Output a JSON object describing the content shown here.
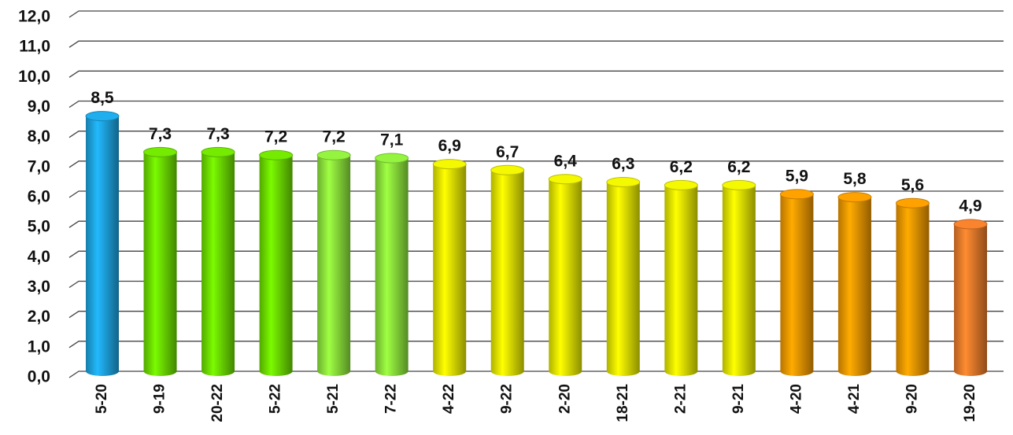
{
  "chart_data": {
    "type": "bar",
    "categories": [
      "5-20",
      "9-19",
      "20-22",
      "5-22",
      "5-21",
      "7-22",
      "4-22",
      "9-22",
      "2-20",
      "18-21",
      "2-21",
      "9-21",
      "4-20",
      "4-21",
      "9-20",
      "19-20"
    ],
    "values": [
      8.5,
      7.3,
      7.3,
      7.2,
      7.2,
      7.1,
      6.9,
      6.7,
      6.4,
      6.3,
      6.2,
      6.2,
      5.9,
      5.8,
      5.6,
      4.9
    ],
    "value_labels": [
      "8,5",
      "7,3",
      "7,3",
      "7,2",
      "7,2",
      "7,1",
      "6,9",
      "6,7",
      "6,4",
      "6,3",
      "6,2",
      "6,2",
      "5,9",
      "5,8",
      "5,6",
      "4,9"
    ],
    "colors": [
      "#1ea6e3",
      "#6ee000",
      "#6ee000",
      "#6ee000",
      "#8ee83c",
      "#8ee83c",
      "#e8ec00",
      "#e8ec00",
      "#e8ec00",
      "#e8ec00",
      "#e8ec00",
      "#e8ec00",
      "#f59a00",
      "#f59a00",
      "#f59a00",
      "#ee7d2c"
    ],
    "ylim": [
      0,
      12
    ],
    "yticks": [
      {
        "value": 0,
        "label": "0,0"
      },
      {
        "value": 1,
        "label": "1,0"
      },
      {
        "value": 2,
        "label": "2,0"
      },
      {
        "value": 3,
        "label": "3,0"
      },
      {
        "value": 4,
        "label": "4,0"
      },
      {
        "value": 5,
        "label": "5,0"
      },
      {
        "value": 6,
        "label": "6,0"
      },
      {
        "value": 7,
        "label": "7,0"
      },
      {
        "value": 8,
        "label": "8,0"
      },
      {
        "value": 9,
        "label": "9,0"
      },
      {
        "value": 10,
        "label": "10,0"
      },
      {
        "value": 11,
        "label": "11,0"
      },
      {
        "value": 12,
        "label": "12,0"
      }
    ],
    "grid": true
  }
}
